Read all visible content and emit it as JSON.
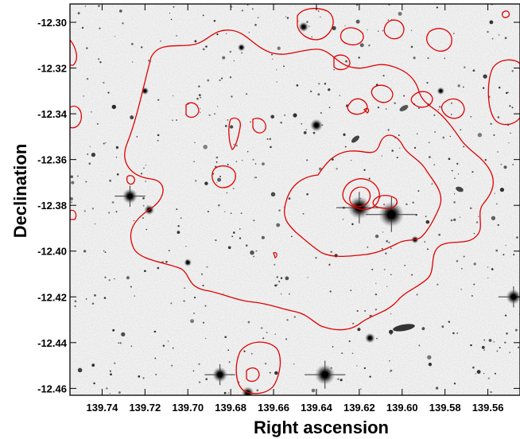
{
  "figure": {
    "xlabel": "Right ascension",
    "ylabel": "Declination",
    "x_ticks": [
      "139.74",
      "139.72",
      "139.70",
      "139.68",
      "139.66",
      "139.64",
      "139.62",
      "139.60",
      "139.58",
      "139.56"
    ],
    "y_ticks": [
      "-12.30",
      "-12.32",
      "-12.34",
      "-12.36",
      "-12.38",
      "-12.40",
      "-12.42",
      "-12.44",
      "-12.46"
    ],
    "x_range": [
      139.755,
      139.545
    ],
    "y_range": [
      -12.292,
      -12.463
    ],
    "contour_color": "#e00000",
    "stars": [
      {
        "ra": 139.646,
        "dec": -12.302,
        "r": 4
      },
      {
        "ra": 139.62,
        "dec": -12.381,
        "r": 9
      },
      {
        "ra": 139.605,
        "dec": -12.384,
        "r": 10
      },
      {
        "ra": 139.727,
        "dec": -12.376,
        "r": 6
      },
      {
        "ra": 139.718,
        "dec": -12.382,
        "r": 4
      },
      {
        "ra": 139.64,
        "dec": -12.345,
        "r": 5
      },
      {
        "ra": 139.685,
        "dec": -12.454,
        "r": 6
      },
      {
        "ra": 139.636,
        "dec": -12.454,
        "r": 8
      },
      {
        "ra": 139.672,
        "dec": -12.462,
        "r": 5
      },
      {
        "ra": 139.594,
        "dec": -12.395,
        "r": 3
      },
      {
        "ra": 139.548,
        "dec": -12.42,
        "r": 6
      },
      {
        "ra": 139.615,
        "dec": -12.438,
        "r": 4
      },
      {
        "ra": 139.72,
        "dec": -12.33,
        "r": 3
      },
      {
        "ra": 139.582,
        "dec": -12.33,
        "r": 3
      },
      {
        "ra": 139.675,
        "dec": -12.311,
        "r": 3
      },
      {
        "ra": 139.7,
        "dec": -12.405,
        "r": 3
      }
    ]
  }
}
